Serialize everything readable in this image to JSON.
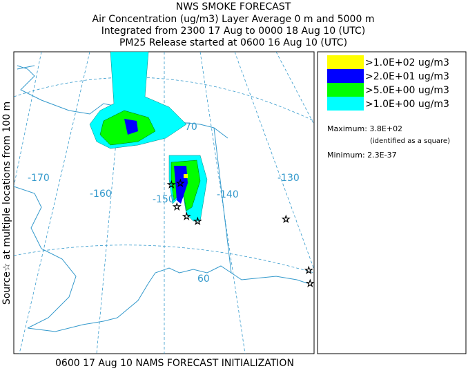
{
  "header": {
    "title": "NWS SMOKE FORECAST",
    "lines": [
      "Air Concentration (ug/m3) Layer Average    0 m and  5000 m",
      "Integrated from 2300 17 Aug to 0000 18 Aug 10 (UTC)",
      "PM25 Release started at 0600 16 Aug 10 (UTC)"
    ]
  },
  "side_label": "Source☆ at multiple locations from  100 m",
  "footer": "0600 17 Aug 10 NAMS FORECAST INITIALIZATION",
  "map": {
    "labels": [
      "-170",
      "-160",
      "-150",
      "-140",
      "-130",
      "70",
      "60"
    ]
  },
  "legend": {
    "entries": [
      {
        "label": ">1.0E+02 ug/m3",
        "color": "#ffff00"
      },
      {
        "label": ">2.0E+01 ug/m3",
        "color": "#0000ff"
      },
      {
        "label": ">5.0E+00 ug/m3",
        "color": "#00ff00"
      },
      {
        "label": ">1.0E+00 ug/m3",
        "color": "#00ffff"
      }
    ],
    "maximum": "Maximum: 3.8E+02",
    "max_note": "(identified as a square)",
    "minimum": "Minimum: 2.3E-37"
  }
}
